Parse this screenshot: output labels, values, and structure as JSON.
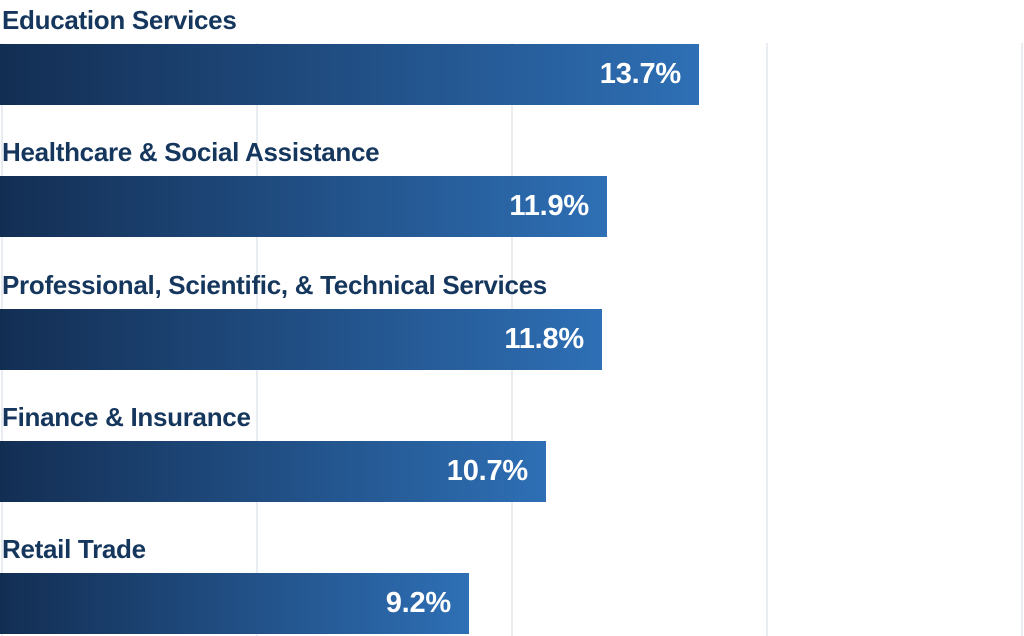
{
  "chart_data": {
    "type": "bar",
    "orientation": "horizontal",
    "title": "",
    "categories": [
      "Education Services",
      "Healthcare & Social Assistance",
      "Professional, Scientific, & Technical Services",
      "Finance & Insurance",
      "Retail Trade"
    ],
    "values": [
      13.7,
      11.9,
      11.8,
      10.7,
      9.2
    ],
    "value_labels": [
      "13.7%",
      "11.9%",
      "11.8%",
      "10.7%",
      "9.2%"
    ],
    "axis": {
      "xmin": 0,
      "xmax": 20,
      "gridlines_pct": [
        0,
        5,
        10,
        15,
        20
      ],
      "grid_visible": true,
      "tick_labels_visible": false
    },
    "legend": "none",
    "colors": {
      "bar_gradient_start": "#132e53",
      "bar_gradient_end": "#2e6fb5",
      "category_label": "#16375d",
      "value_label": "#ffffff",
      "gridline": "#e9edf2",
      "background": "#ffffff"
    }
  }
}
